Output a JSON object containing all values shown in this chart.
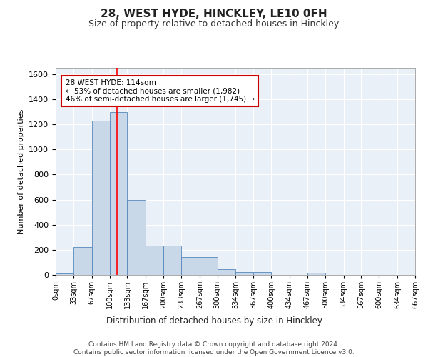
{
  "title": "28, WEST HYDE, HINCKLEY, LE10 0FH",
  "subtitle": "Size of property relative to detached houses in Hinckley",
  "xlabel": "Distribution of detached houses by size in Hinckley",
  "ylabel": "Number of detached properties",
  "bar_color": "#c8d8e8",
  "bar_edge_color": "#5588bb",
  "background_color": "#eaf0f8",
  "grid_color": "#ffffff",
  "red_line_x": 114,
  "annotation_line1": "28 WEST HYDE: 114sqm",
  "annotation_line2": "← 53% of detached houses are smaller (1,982)",
  "annotation_line3": "46% of semi-detached houses are larger (1,745) →",
  "annotation_box_color": "#ffffff",
  "annotation_box_edge": "#cc0000",
  "footer": "Contains HM Land Registry data © Crown copyright and database right 2024.\nContains public sector information licensed under the Open Government Licence v3.0.",
  "bin_edges": [
    0,
    33,
    67,
    100,
    133,
    167,
    200,
    233,
    267,
    300,
    334,
    367,
    400,
    434,
    467,
    500,
    534,
    567,
    600,
    634,
    667
  ],
  "bar_heights": [
    10,
    220,
    1230,
    1300,
    600,
    235,
    235,
    140,
    140,
    45,
    25,
    20,
    0,
    0,
    15,
    0,
    0,
    0,
    0,
    0
  ],
  "ylim": [
    0,
    1650
  ],
  "yticks": [
    0,
    200,
    400,
    600,
    800,
    1000,
    1200,
    1400,
    1600
  ],
  "title_fontsize": 11,
  "subtitle_fontsize": 9,
  "ylabel_fontsize": 8,
  "xlabel_fontsize": 8.5,
  "tick_fontsize": 7,
  "footer_fontsize": 6.5
}
